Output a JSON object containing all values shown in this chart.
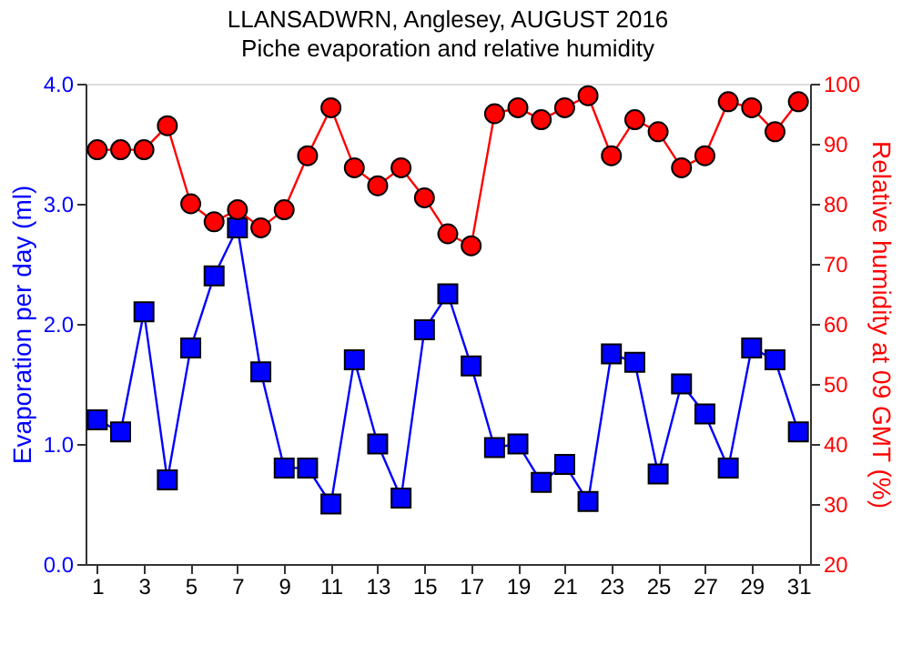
{
  "chart_data": {
    "type": "line",
    "title": "LLANSADWRN, Anglesey, AUGUST 2016",
    "subtitle": "Piche evaporation and relative humidity",
    "ylabel": "Evaporation per day (ml)",
    "y2label": "Relative humidity at 09 GMT (%)",
    "x": [
      1,
      2,
      3,
      4,
      5,
      6,
      7,
      8,
      9,
      10,
      11,
      12,
      13,
      14,
      15,
      16,
      17,
      18,
      19,
      20,
      21,
      22,
      23,
      24,
      25,
      26,
      27,
      28,
      29,
      30,
      31
    ],
    "series": [
      {
        "color": "#0000ff",
        "marker": "square",
        "values": [
          1.2,
          1.1,
          2.1,
          0.7,
          1.8,
          2.4,
          2.8,
          1.6,
          0.8,
          0.8,
          0.5,
          1.7,
          1.0,
          0.55,
          1.95,
          2.25,
          1.65,
          0.97,
          1.0,
          0.68,
          0.83,
          0.52,
          1.75,
          1.68,
          0.75,
          1.5,
          1.25,
          0.8,
          1.8,
          1.7,
          1.1
        ]
      },
      {
        "color": "#ff0000",
        "marker": "circle",
        "axis": "y2",
        "values": [
          89,
          89,
          89,
          93,
          80,
          77,
          79,
          76,
          79,
          88,
          96,
          86,
          83,
          86,
          81,
          75,
          73,
          95,
          96,
          94,
          96,
          98,
          88,
          94,
          92,
          86,
          88,
          97,
          96,
          92,
          97
        ]
      }
    ],
    "xlim": [
      0.5,
      31.5
    ],
    "xticks": [
      1,
      3,
      5,
      7,
      9,
      11,
      13,
      15,
      17,
      19,
      21,
      23,
      25,
      27,
      29,
      31
    ],
    "ylim": [
      0,
      4
    ],
    "yticks": [
      {
        "value": 0,
        "label": "0.0"
      },
      {
        "value": 1,
        "label": "1.0"
      },
      {
        "value": 2,
        "label": "2.0"
      },
      {
        "value": 3,
        "label": "3.0"
      },
      {
        "value": 4,
        "label": "4.0"
      }
    ],
    "y2lim": [
      20,
      100
    ],
    "y2ticks": [
      20,
      30,
      40,
      50,
      60,
      70,
      80,
      90,
      100
    ],
    "grid": false
  }
}
